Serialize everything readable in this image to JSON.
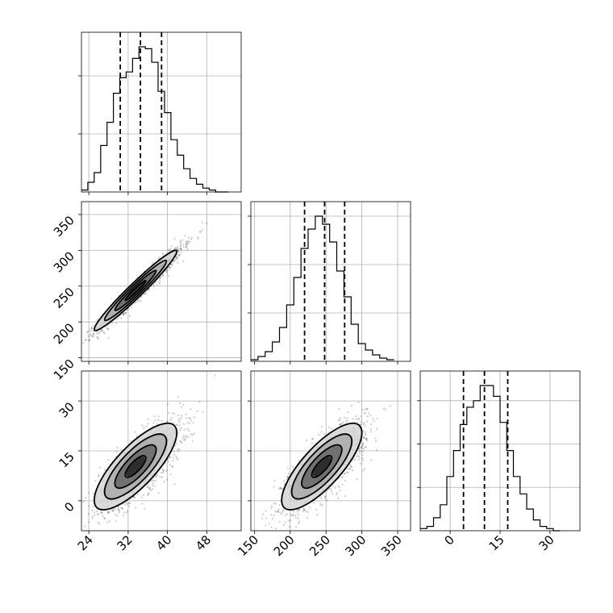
{
  "chart_data": {
    "type": "corner",
    "grid": true,
    "params": [
      {
        "ticks": [
          24,
          32,
          40,
          48
        ],
        "tick_labels": [
          "24",
          "32",
          "40",
          "48"
        ],
        "range": [
          22.5,
          55
        ],
        "quantiles": [
          30.4,
          34.5,
          38.8
        ],
        "hist_edges": [
          22.5,
          23.8,
          25.1,
          26.4,
          27.7,
          29.0,
          30.3,
          31.6,
          32.9,
          34.2,
          35.5,
          36.8,
          38.1,
          39.4,
          40.7,
          42.0,
          43.3,
          44.6,
          45.9,
          47.2,
          48.5,
          49.8,
          51.1,
          52.4
        ],
        "hist_counts": [
          1,
          5,
          10,
          24,
          36,
          51,
          59,
          62,
          69,
          75,
          74,
          67,
          52,
          41,
          27,
          19,
          12,
          7,
          4,
          2,
          1,
          0,
          0
        ]
      },
      {
        "ticks": [
          150,
          200,
          250,
          300,
          350
        ],
        "tick_labels": [
          "150",
          "200",
          "250",
          "300",
          "350"
        ],
        "range": [
          145,
          368
        ],
        "quantiles": [
          220,
          248,
          276
        ],
        "hist_edges": [
          145,
          155,
          165,
          175,
          185,
          195,
          205,
          215,
          225,
          235,
          245,
          255,
          265,
          275,
          285,
          295,
          305,
          315,
          325,
          335,
          345
        ],
        "hist_counts": [
          1,
          3,
          6,
          12,
          21,
          35,
          52,
          70,
          82,
          90,
          85,
          74,
          56,
          40,
          23,
          11,
          7,
          4,
          2,
          1
        ]
      },
      {
        "ticks": [
          0,
          15,
          30
        ],
        "tick_labels": [
          "0",
          "15",
          "30"
        ],
        "range": [
          -9,
          39
        ],
        "quantiles": [
          4,
          10.3,
          17.3
        ],
        "hist_edges": [
          -9,
          -7,
          -5,
          -3,
          -1,
          1,
          3,
          5,
          7,
          9,
          11,
          13,
          15,
          17,
          19,
          21,
          23,
          25,
          27,
          29,
          31,
          33
        ],
        "hist_counts": [
          1,
          2,
          6,
          12,
          25,
          37,
          49,
          57,
          60,
          67,
          67,
          62,
          50,
          37,
          25,
          17,
          10,
          5,
          2,
          1,
          0
        ]
      }
    ],
    "correlations": {
      "1_0": 0.97,
      "2_0": 0.78,
      "2_1": 0.78
    },
    "density_peak": {
      "1_0": [
        33.5,
        244
      ],
      "2_0": [
        33.5,
        10.3
      ],
      "2_1": [
        244,
        10.3
      ]
    }
  }
}
